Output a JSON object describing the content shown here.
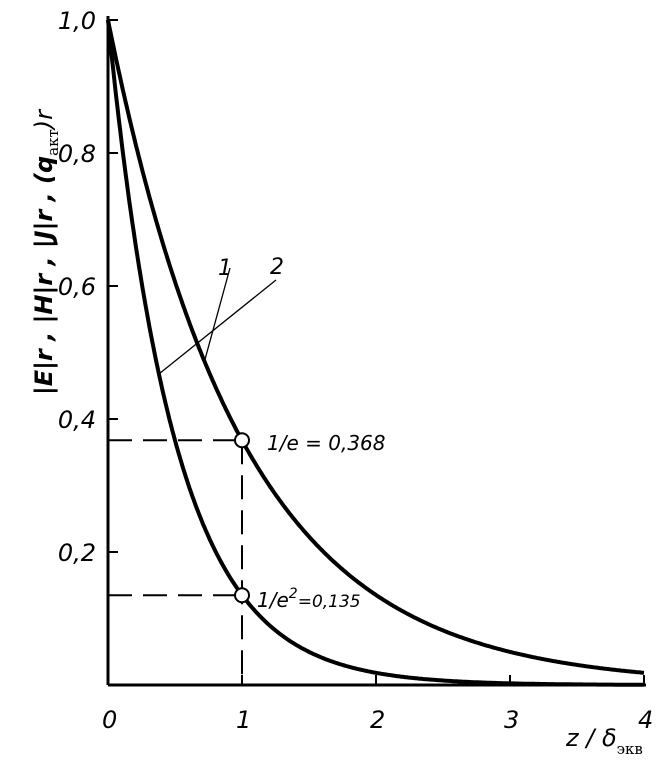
{
  "chart_data": {
    "type": "line",
    "x_tick_labels": [
      "0",
      "1",
      "2",
      "3",
      "4"
    ],
    "y_tick_labels": [
      "0,2",
      "0,4",
      "0,6",
      "0,8",
      "1,0"
    ],
    "xlim": [
      0,
      4
    ],
    "ylim": [
      0,
      1
    ],
    "xlabel": {
      "main": "z / δ",
      "sub": "экв"
    },
    "ylabel": {
      "main": "|E|r , |H|r , |J|r , (q",
      "sub": "акт",
      "tail": ")r"
    },
    "grid": false,
    "series": [
      {
        "name": "1",
        "formula": "exp(-x)",
        "x": [
          0,
          0.5,
          1,
          1.5,
          2,
          2.5,
          3,
          3.5,
          4
        ],
        "y": [
          1.0,
          0.607,
          0.368,
          0.223,
          0.135,
          0.082,
          0.05,
          0.03,
          0.018
        ]
      },
      {
        "name": "2",
        "formula": "exp(-2x)",
        "x": [
          0,
          0.5,
          1,
          1.5,
          2,
          2.5,
          3,
          3.5,
          4
        ],
        "y": [
          1.0,
          0.368,
          0.135,
          0.05,
          0.018,
          0.007,
          0.002,
          0.001,
          0.0003
        ]
      }
    ],
    "annotations": [
      {
        "text_main": "1/e = 0,368",
        "x": 1,
        "y": 0.368
      },
      {
        "text_main": "1/e",
        "text_sup": "2",
        "text_tail": "=0,135",
        "x": 1,
        "y": 0.135
      }
    ]
  }
}
